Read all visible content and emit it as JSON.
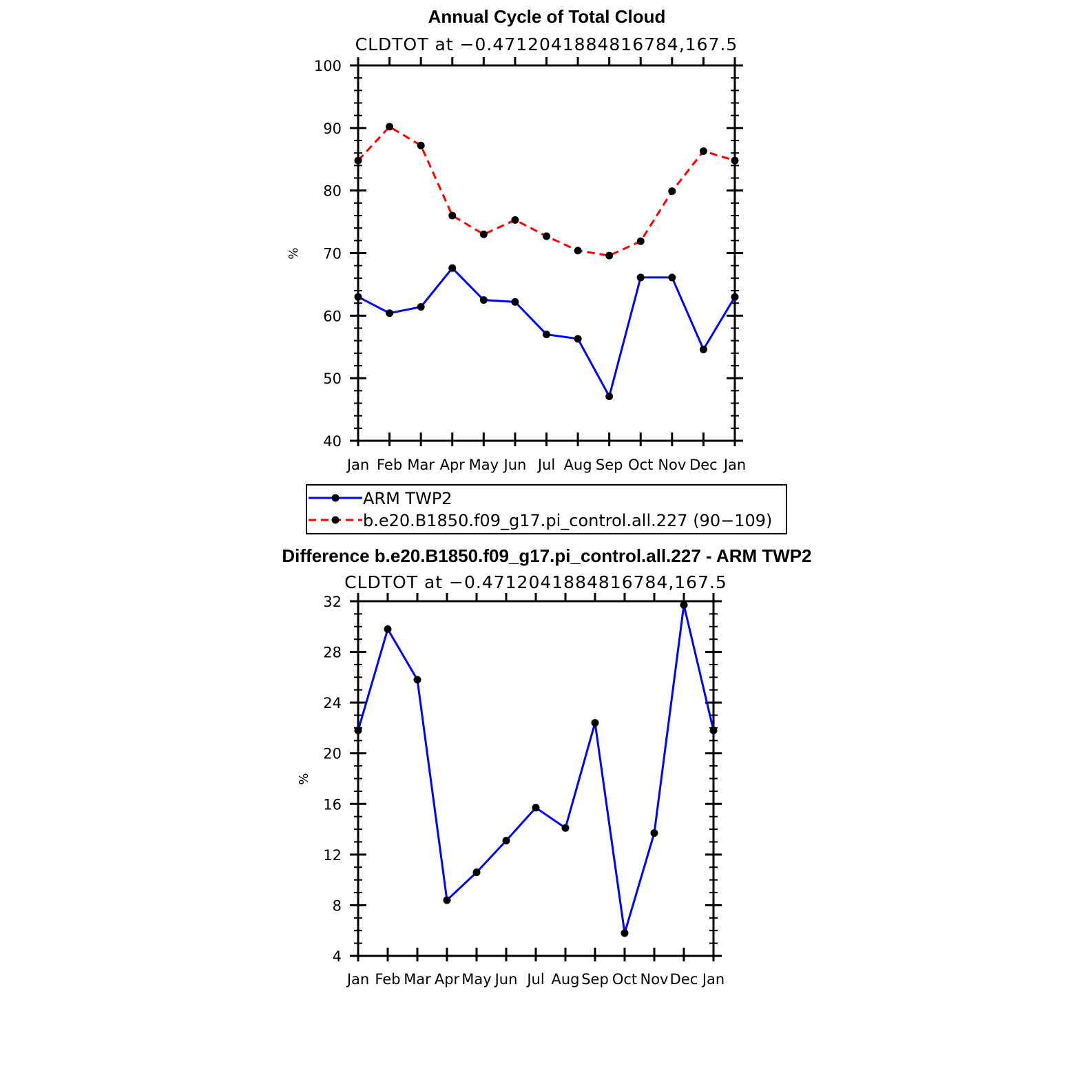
{
  "chart_data": [
    {
      "type": "line",
      "title": "Annual Cycle of Total Cloud",
      "subtitle": "CLDTOT at −0.4712041884816784,167.5",
      "ylabel": "%",
      "xlabel": "",
      "categories": [
        "Jan",
        "Feb",
        "Mar",
        "Apr",
        "May",
        "Jun",
        "Jul",
        "Aug",
        "Sep",
        "Oct",
        "Nov",
        "Dec",
        "Jan"
      ],
      "ylim": [
        40,
        100
      ],
      "yticks": [
        40,
        50,
        60,
        70,
        80,
        90,
        100
      ],
      "grid": false,
      "series": [
        {
          "name": "ARM TWP2",
          "color": "#0000ff",
          "dashed": false,
          "values": [
            63.0,
            60.4,
            61.4,
            67.6,
            62.5,
            62.2,
            57.0,
            56.3,
            47.1,
            66.1,
            66.1,
            54.6,
            63.0
          ]
        },
        {
          "name": "b.e20.B1850.f09_g17.pi_control.all.227 (90−109)",
          "color": "#ff0000",
          "dashed": true,
          "values": [
            84.8,
            90.2,
            87.2,
            76.0,
            73.0,
            75.3,
            72.7,
            70.4,
            69.6,
            71.9,
            79.9,
            86.3,
            84.8
          ]
        }
      ],
      "legend": "below"
    },
    {
      "type": "line",
      "title": "Difference b.e20.B1850.f09_g17.pi_control.all.227 - ARM TWP2",
      "subtitle": "CLDTOT at −0.4712041884816784,167.5",
      "ylabel": "%",
      "xlabel": "",
      "categories": [
        "Jan",
        "Feb",
        "Mar",
        "Apr",
        "May",
        "Jun",
        "Jul",
        "Aug",
        "Sep",
        "Oct",
        "Nov",
        "Dec",
        "Jan"
      ],
      "ylim": [
        4,
        32
      ],
      "yticks": [
        4,
        8,
        12,
        16,
        20,
        24,
        28,
        32
      ],
      "grid": false,
      "series": [
        {
          "color": "#0000ff",
          "dashed": false,
          "values": [
            21.8,
            29.8,
            25.8,
            8.4,
            10.6,
            13.1,
            15.7,
            14.1,
            22.4,
            5.8,
            13.7,
            31.7,
            21.8
          ]
        }
      ]
    }
  ]
}
